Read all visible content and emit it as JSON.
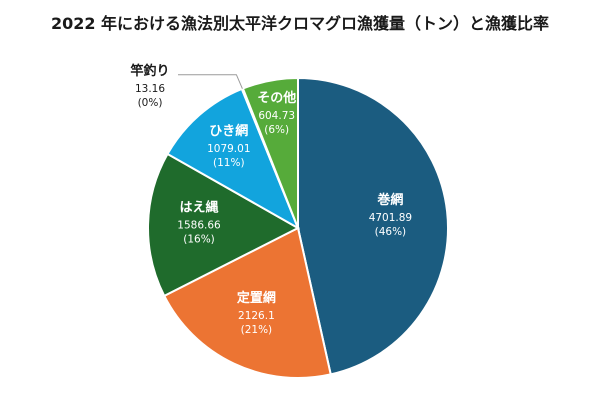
{
  "chart_data": {
    "type": "pie",
    "title": "2022 年における漁法別太平洋クロマグロ漁獲量（トン）と漁獲比率",
    "slices": [
      {
        "name": "巻網",
        "value": 4701.89,
        "value_label": "4701.89",
        "pct_label": "(46%)",
        "color": "#1b5c80"
      },
      {
        "name": "定置網",
        "value": 2126.1,
        "value_label": "2126.1",
        "pct_label": "(21%)",
        "color": "#ec7433"
      },
      {
        "name": "はえ縄",
        "value": 1586.66,
        "value_label": "1586.66",
        "pct_label": "(16%)",
        "color": "#1f6b2c"
      },
      {
        "name": "ひき網",
        "value": 1079.01,
        "value_label": "1079.01",
        "pct_label": "(11%)",
        "color": "#12a4dd"
      },
      {
        "name": "竿釣り",
        "value": 13.16,
        "value_label": "13.16",
        "pct_label": "(0%)",
        "color": "#3d6fb0"
      },
      {
        "name": "その他",
        "value": 604.73,
        "value_label": "604.73",
        "pct_label": "(6%)",
        "color": "#56ab3a"
      }
    ]
  }
}
